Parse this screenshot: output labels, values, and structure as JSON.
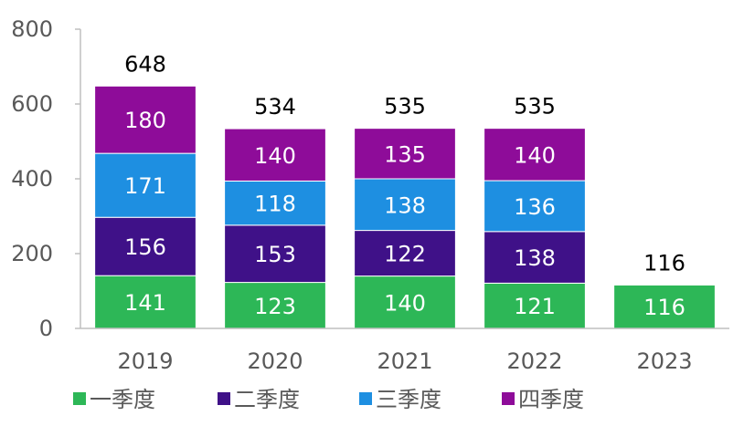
{
  "chart_data": {
    "type": "bar",
    "stacked": true,
    "categories": [
      "2019",
      "2020",
      "2021",
      "2022",
      "2023"
    ],
    "series": [
      {
        "name": "一季度",
        "color": "#2DB757",
        "values": [
          141,
          123,
          140,
          121,
          116
        ]
      },
      {
        "name": "二季度",
        "color": "#3F1188",
        "values": [
          156,
          153,
          122,
          138,
          null
        ]
      },
      {
        "name": "三季度",
        "color": "#1E8FE1",
        "values": [
          171,
          118,
          138,
          136,
          null
        ]
      },
      {
        "name": "四季度",
        "color": "#8E0C99",
        "values": [
          180,
          140,
          135,
          140,
          null
        ]
      }
    ],
    "totals": [
      648,
      534,
      535,
      535,
      116
    ],
    "ylim": [
      0,
      800
    ],
    "yticks": [
      0,
      200,
      400,
      600,
      800
    ],
    "grid": false,
    "legend": "bottom",
    "title": "",
    "xlabel": "",
    "ylabel": ""
  }
}
